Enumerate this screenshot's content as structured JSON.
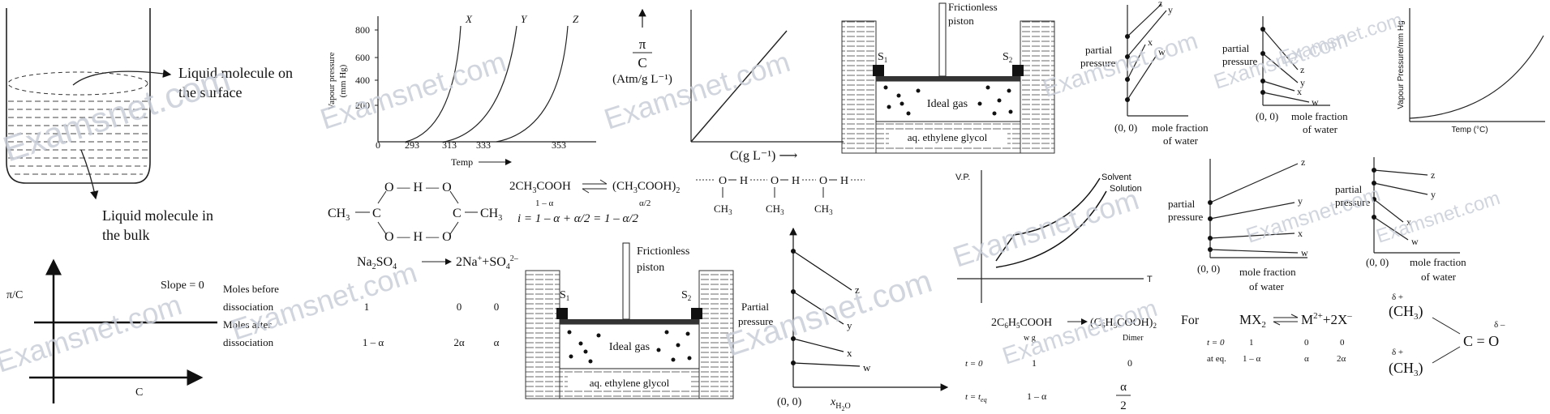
{
  "watermark": "Examsnet.com",
  "beaker": {
    "surface_label_1": "Liquid molecule on",
    "surface_label_2": "the surface",
    "bulk_label_1": "Liquid molecule in",
    "bulk_label_2": "the bulk"
  },
  "vp_temp": {
    "ylabel_1": "Vapour pressure",
    "ylabel_2": "(mm Hg)",
    "yticks": [
      "800",
      "600",
      "400",
      "200"
    ],
    "xticks": [
      "0",
      "293",
      "313",
      "333",
      "353"
    ],
    "xlabel": "Temp",
    "curves": [
      "X",
      "Y",
      "Z"
    ]
  },
  "osmotic": {
    "ylabel_top": "π",
    "ylabel_bottom": "C",
    "ylabel_units": "(Atm/g L⁻¹)",
    "xlabel": "C(g L⁻¹) ⟶"
  },
  "piston_setup": {
    "piston_label_1": "Frictionless",
    "piston_label_2": "piston",
    "s1": "S",
    "s1_sub": "1",
    "s2": "S",
    "s2_sub": "2",
    "gas_label": "Ideal gas",
    "liquid_label": "aq. ethylene glycol"
  },
  "pp_up": {
    "ylabel_1": "partial",
    "ylabel_2": "pressure",
    "origin": "(0, 0)",
    "xlabel_1": "mole fraction",
    "xlabel_2": "of water",
    "lines": [
      "z",
      "y",
      "x",
      "w"
    ]
  },
  "pp_down": {
    "ylabel_1": "partial",
    "ylabel_2": "pressure",
    "origin": "(0, 0)",
    "xlabel_1": "mole fraction",
    "xlabel_2": "of water",
    "lines": [
      "z",
      "y",
      "x",
      "w"
    ]
  },
  "vp_curve": {
    "ylabel": "Vapour Pressure/mm Hg",
    "xlabel": "Temp (°C)"
  },
  "dimer_structure": {
    "left_group": "CH",
    "left_sub": "3",
    "right_group": "CH",
    "right_sub": "3",
    "top_bond": "O — H — O",
    "bottom_bond": "O — H — O"
  },
  "acetic_equilibrium": {
    "reaction_left": "2CH",
    "reaction_left_sub": "3",
    "reaction_left_tail": "COOH",
    "reaction_right": "(CH",
    "reaction_right_sub": "3",
    "reaction_right_tail": "COOH)",
    "reaction_right_sub2": "2",
    "left_amount": "1 – α",
    "right_amount": "α/2",
    "vant_hoff": "i = 1 – α + α/2 = 1 – α/2"
  },
  "hbond_chain": {
    "atoms": [
      "O",
      "H",
      "O",
      "H",
      "O",
      "H"
    ],
    "methyls": [
      "CH",
      "CH",
      "CH"
    ],
    "methyl_sub": "3"
  },
  "na2so4": {
    "reactant": "Na",
    "reactant_sub": "2",
    "reactant_tail": "SO",
    "reactant_sub2": "4",
    "product_1": "2Na",
    "product_1_sup": "+",
    "product_2": "SO",
    "product_2_sub": "4",
    "product_2_sup": "2–",
    "plus": "+"
  },
  "dissociation_table": {
    "row1_label_1": "Moles before",
    "row1_label_2": "dissociation",
    "row1_values": [
      "1",
      "0",
      "0"
    ],
    "row2_label_1": "Moles after",
    "row2_label_2": "dissociation",
    "row2_values": [
      "1 – α",
      "2α",
      "α"
    ]
  },
  "pi_c_graph": {
    "ylabel": "π/C",
    "xlabel": "C",
    "slope_label": "Slope = 0"
  },
  "xh2o_graph": {
    "ylabel_1": "Partial",
    "ylabel_2": "pressure",
    "origin": "(0, 0)",
    "xlabel": "x",
    "xlabel_sub": "H",
    "xlabel_sub2": "O",
    "xlabel_sub_num": "2",
    "lines": [
      "z",
      "y",
      "x",
      "w"
    ]
  },
  "vp_solution": {
    "ylabel": "V.P.",
    "xlabel": "T",
    "solvent": "Solvent",
    "solution": "Solution"
  },
  "benzoic_dimer": {
    "reactant": "2C",
    "r_sub1": "6",
    "r_mid": "H",
    "r_sub2": "5",
    "r_tail": "COOH",
    "product": "(C",
    "p_sub1": "6",
    "p_mid": "H",
    "p_sub2": "5",
    "p_tail": "COOH)",
    "p_sub3": "2",
    "reactant_note": "w g",
    "product_note": "Dimer",
    "t0_label": "t = 0",
    "t0_values": [
      "1",
      "0"
    ],
    "teq_label": "t = t",
    "teq_sub": "eq",
    "teq_values": [
      "1 – α"
    ],
    "teq_frac_num": "α",
    "teq_frac_den": "2"
  },
  "mx2": {
    "for_label": "For",
    "reactant": "MX",
    "reactant_sub": "2",
    "product_1": "M",
    "product_1_sup": "2+",
    "plus": "+",
    "product_2": "2X",
    "product_2_sup": "–",
    "row1_label": "t = 0",
    "row1_values": [
      "1",
      "0",
      "0"
    ],
    "row2_label": "at eq.",
    "row2_values": [
      "1 – α",
      "α",
      "2α"
    ]
  },
  "acetone": {
    "group_top": "(CH",
    "group_top_sub": "3",
    "group_top_tail": ")",
    "group_bottom": "(CH",
    "group_bottom_sub": "3",
    "group_bottom_tail": ")",
    "delta_plus": "δ +",
    "delta_minus": "δ –",
    "carbonyl": "C = O"
  }
}
